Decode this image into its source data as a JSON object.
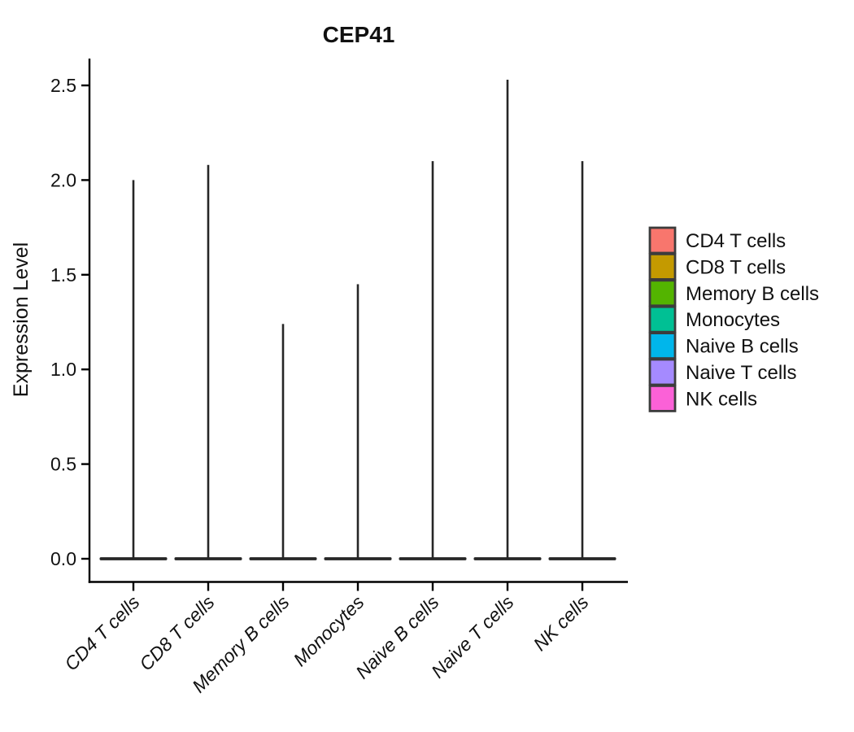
{
  "chart_data": {
    "type": "violin",
    "title": "CEP41",
    "ylabel": "Expression Level",
    "categories": [
      "CD4 T cells",
      "CD8 T cells",
      "Memory B cells",
      "Monocytes",
      "Naive B cells",
      "Naive T cells",
      "NK cells"
    ],
    "series": [
      {
        "name": "violin_peak_max_expression",
        "values": [
          2.0,
          2.08,
          1.24,
          1.45,
          2.1,
          2.53,
          2.1
        ]
      },
      {
        "name": "density_mode_value",
        "values": [
          0,
          0,
          0,
          0,
          0,
          0,
          0
        ]
      }
    ],
    "y_tick_values": [
      0,
      0.5,
      1,
      1.5,
      2,
      2.5
    ],
    "y_tick_labels": [
      "0.0",
      "0.5",
      "1.0",
      "1.5",
      "2.0",
      "2.5"
    ],
    "ylim": [
      -0.12,
      2.65
    ],
    "grid": false,
    "legend_position": "right",
    "legend": [
      {
        "label": "CD4 T cells",
        "color": "#F8766D"
      },
      {
        "label": "CD8 T cells",
        "color": "#C49A00"
      },
      {
        "label": "Memory B cells",
        "color": "#53B400"
      },
      {
        "label": "Monocytes",
        "color": "#00C094"
      },
      {
        "label": "Naive B cells",
        "color": "#00B6EB"
      },
      {
        "label": "Naive T cells",
        "color": "#A58AFF"
      },
      {
        "label": "NK cells",
        "color": "#FB61D7"
      }
    ],
    "violin_color": "#262626",
    "axis_color": "#000000",
    "legend_swatch_border_color": "#3C3C3C",
    "text_color": "#111111"
  }
}
